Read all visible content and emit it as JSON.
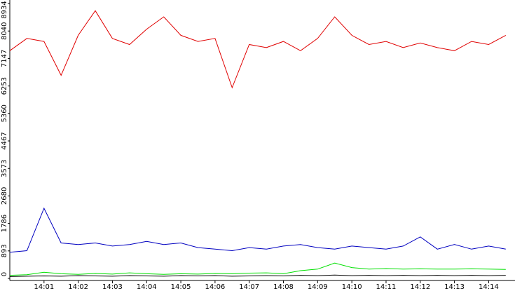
{
  "chart_data": {
    "type": "line",
    "x": [
      0,
      0.5,
      1,
      1.5,
      2,
      2.5,
      3,
      3.5,
      4,
      4.5,
      5,
      5.5,
      6,
      6.5,
      7,
      7.5,
      8,
      8.5,
      9,
      9.5,
      10,
      10.5,
      11,
      11.5,
      12,
      12.5,
      13,
      13.5,
      14,
      14.5
    ],
    "series": [
      {
        "color": "#e00000",
        "values": [
          7400,
          7800,
          7700,
          6600,
          7900,
          8700,
          7800,
          7600,
          8100,
          8500,
          7900,
          7700,
          7800,
          6200,
          7600,
          7500,
          7700,
          7400,
          7800,
          8500,
          7900,
          7600,
          7700,
          7500,
          7650,
          7500,
          7400,
          7700,
          7600,
          7900
        ]
      },
      {
        "color": "#0000c0",
        "values": [
          850,
          900,
          2280,
          1150,
          1100,
          1150,
          1050,
          1100,
          1200,
          1100,
          1150,
          1000,
          950,
          900,
          1000,
          950,
          1050,
          1100,
          1000,
          950,
          1050,
          1000,
          950,
          1050,
          1350,
          950,
          1100,
          950,
          1050,
          950
        ]
      },
      {
        "color": "#00e000",
        "values": [
          100,
          120,
          200,
          150,
          130,
          160,
          140,
          180,
          150,
          130,
          150,
          140,
          160,
          150,
          170,
          180,
          150,
          250,
          300,
          500,
          350,
          300,
          320,
          300,
          310,
          300,
          300,
          310,
          300,
          290
        ]
      },
      {
        "color": "#000000",
        "values": [
          60,
          70,
          80,
          70,
          90,
          80,
          70,
          90,
          80,
          70,
          90,
          80,
          90,
          70,
          80,
          90,
          80,
          100,
          90,
          110,
          90,
          100,
          90,
          100,
          90,
          100,
          90,
          100,
          90,
          100
        ]
      }
    ],
    "xlim": [
      0,
      14.77
    ],
    "xticks": [
      {
        "value": 1,
        "label": "14:01"
      },
      {
        "value": 2,
        "label": "14:02"
      },
      {
        "value": 3,
        "label": "14:03"
      },
      {
        "value": 4,
        "label": "14:04"
      },
      {
        "value": 5,
        "label": "14:05"
      },
      {
        "value": 6,
        "label": "14:06"
      },
      {
        "value": 7,
        "label": "14:07"
      },
      {
        "value": 8,
        "label": "14:08"
      },
      {
        "value": 9,
        "label": "14:09"
      },
      {
        "value": 10,
        "label": "14:10"
      },
      {
        "value": 11,
        "label": "14:11"
      },
      {
        "value": 12,
        "label": "14:12"
      },
      {
        "value": 13,
        "label": "14:13"
      },
      {
        "value": 14,
        "label": "14:14"
      }
    ],
    "ylim": [
      0,
      8934
    ],
    "yticks": [
      0,
      893,
      1786,
      2680,
      3573,
      4467,
      5360,
      6253,
      7147,
      8040,
      8934
    ]
  }
}
